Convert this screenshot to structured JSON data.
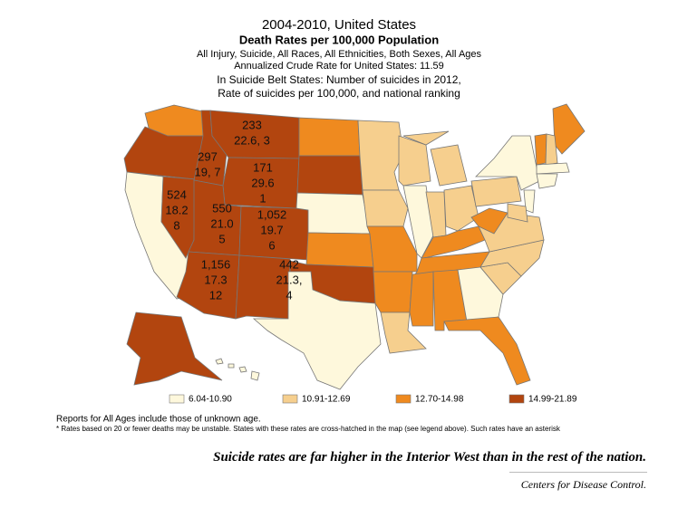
{
  "header": {
    "title": "2004-2010, United States",
    "subtitle": "Death Rates per 100,000 Population",
    "details": [
      "All Injury, Suicide, All Races, All Ethnicities, Both Sexes, All Ages",
      "Annualized Crude Rate for United States: 11.59"
    ],
    "belt_note": [
      "In Suicide Belt States: Number of suicides in 2012,",
      "Rate of suicides per 100,000, and national ranking"
    ]
  },
  "legend": [
    {
      "label": "6.04-10.90",
      "color": "#fef8dc"
    },
    {
      "label": "10.91-12.69",
      "color": "#f6cf8e"
    },
    {
      "label": "12.70-14.98",
      "color": "#ef8a1f"
    },
    {
      "label": "14.99-21.89",
      "color": "#b2450f"
    }
  ],
  "annotations": [
    {
      "lines": [
        "233",
        "22.6, 3"
      ]
    },
    {
      "lines": [
        "297",
        "19, 7"
      ]
    },
    {
      "lines": [
        "171",
        "29.6",
        "1"
      ]
    },
    {
      "lines": [
        "524",
        "18.2",
        "8"
      ]
    },
    {
      "lines": [
        "550",
        "21.0",
        "5"
      ]
    },
    {
      "lines": [
        "1,052",
        "19.7",
        "6"
      ]
    },
    {
      "lines": [
        "1,156",
        "17.3",
        "12"
      ]
    },
    {
      "lines": [
        "442",
        "21.3,",
        "4"
      ]
    }
  ],
  "notes": [
    "Reports for All Ages include those of unknown age.",
    "* Rates based on 20 or fewer deaths may be unstable.  States with these rates are cross-hatched in the map (see legend above). Such rates have an asterisk"
  ],
  "caption": "Suicide rates are far higher in the Interior West than in the rest of the nation.",
  "credit": "Centers for Disease Control."
}
